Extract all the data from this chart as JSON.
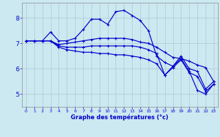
{
  "xlabel": "Graphe des températures (°c)",
  "ylabel": "",
  "background_color": "#cce8f0",
  "grid_color": "#aac8d8",
  "line_color": "#0000cc",
  "xlim": [
    -0.5,
    23.5
  ],
  "ylim": [
    4.5,
    8.6
  ],
  "yticks": [
    5,
    6,
    7,
    8
  ],
  "xticks": [
    0,
    1,
    2,
    3,
    4,
    5,
    6,
    7,
    8,
    9,
    10,
    11,
    12,
    13,
    14,
    15,
    16,
    17,
    18,
    19,
    20,
    21,
    22,
    23
  ],
  "series": [
    {
      "x": [
        0,
        1,
        2,
        3,
        4,
        5,
        6,
        7,
        8,
        9,
        10,
        11,
        12,
        13,
        14,
        15,
        16,
        17,
        18,
        19,
        20,
        21,
        22,
        23
      ],
      "y": [
        7.1,
        7.1,
        7.1,
        7.45,
        7.1,
        7.1,
        7.2,
        7.55,
        7.95,
        7.95,
        7.75,
        8.25,
        8.3,
        8.1,
        7.9,
        7.5,
        6.5,
        6.25,
        6.1,
        6.4,
        5.9,
        5.15,
        5.0,
        5.4
      ]
    },
    {
      "x": [
        0,
        1,
        2,
        3,
        4,
        5,
        6,
        7,
        8,
        9,
        10,
        11,
        12,
        13,
        14,
        15,
        16,
        17,
        18,
        19,
        20,
        21,
        22,
        23
      ],
      "y": [
        7.1,
        7.1,
        7.1,
        7.1,
        6.95,
        7.0,
        7.05,
        7.1,
        7.15,
        7.2,
        7.2,
        7.2,
        7.2,
        7.15,
        7.05,
        7.0,
        6.85,
        6.65,
        6.45,
        6.4,
        6.3,
        6.15,
        6.05,
        5.5
      ]
    },
    {
      "x": [
        0,
        1,
        2,
        3,
        4,
        5,
        6,
        7,
        8,
        9,
        10,
        11,
        12,
        13,
        14,
        15,
        16,
        17,
        18,
        19,
        20,
        21,
        22,
        23
      ],
      "y": [
        7.1,
        7.1,
        7.1,
        7.1,
        6.9,
        6.85,
        6.85,
        6.85,
        6.9,
        6.9,
        6.9,
        6.9,
        6.9,
        6.9,
        6.85,
        6.75,
        6.6,
        5.75,
        6.1,
        6.5,
        6.0,
        5.9,
        5.2,
        5.5
      ]
    },
    {
      "x": [
        0,
        1,
        2,
        3,
        4,
        5,
        6,
        7,
        8,
        9,
        10,
        11,
        12,
        13,
        14,
        15,
        16,
        17,
        18,
        19,
        20,
        21,
        22,
        23
      ],
      "y": [
        7.1,
        7.1,
        7.1,
        7.1,
        6.85,
        6.75,
        6.7,
        6.65,
        6.65,
        6.6,
        6.6,
        6.55,
        6.55,
        6.5,
        6.45,
        6.35,
        6.2,
        5.75,
        6.05,
        6.35,
        5.85,
        5.7,
        5.1,
        5.4
      ]
    }
  ]
}
